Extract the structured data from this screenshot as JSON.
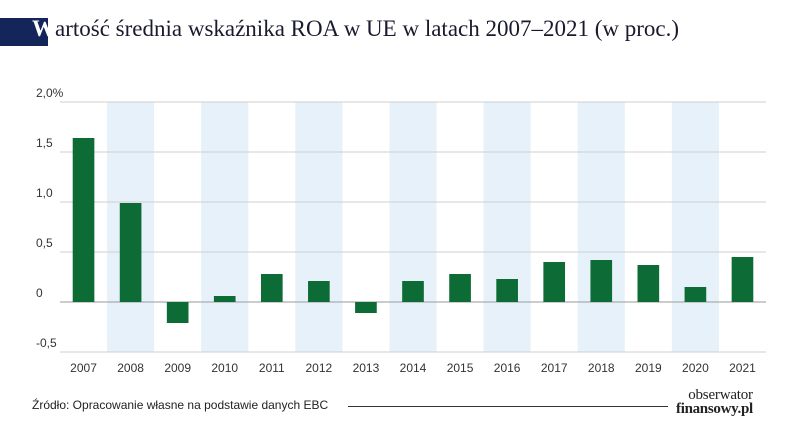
{
  "header": {
    "title_first_letter": "W",
    "title_rest": "artość średnia wskaźnika ROA w UE w latach 2007–2021 (w proc.)"
  },
  "chart_data": {
    "type": "bar",
    "title": "Wartość średnia wskaźnika ROA w UE w latach 2007–2021 (w proc.)",
    "categories": [
      "2007",
      "2008",
      "2009",
      "2010",
      "2011",
      "2012",
      "2013",
      "2014",
      "2015",
      "2016",
      "2017",
      "2018",
      "2019",
      "2020",
      "2021"
    ],
    "values": [
      1.64,
      0.99,
      -0.21,
      0.06,
      0.28,
      0.21,
      -0.11,
      0.21,
      0.28,
      0.23,
      0.4,
      0.42,
      0.37,
      0.15,
      0.45
    ],
    "ylim": [
      -0.5,
      2.0
    ],
    "yticks": [
      -0.5,
      0,
      0.5,
      1.0,
      1.5,
      2.0
    ],
    "ytick_labels": [
      "-0,5",
      "0",
      "0,5",
      "1,0",
      "1,5",
      "2,0%"
    ],
    "grid": true,
    "bar_color": "#0d6b35",
    "band_color": "#e6f1f9"
  },
  "footer": {
    "source": "Źródło: Opracowanie własne na podstawie danych EBC",
    "logo_line1": "obserwator",
    "logo_line2": "finansowy.pl"
  }
}
